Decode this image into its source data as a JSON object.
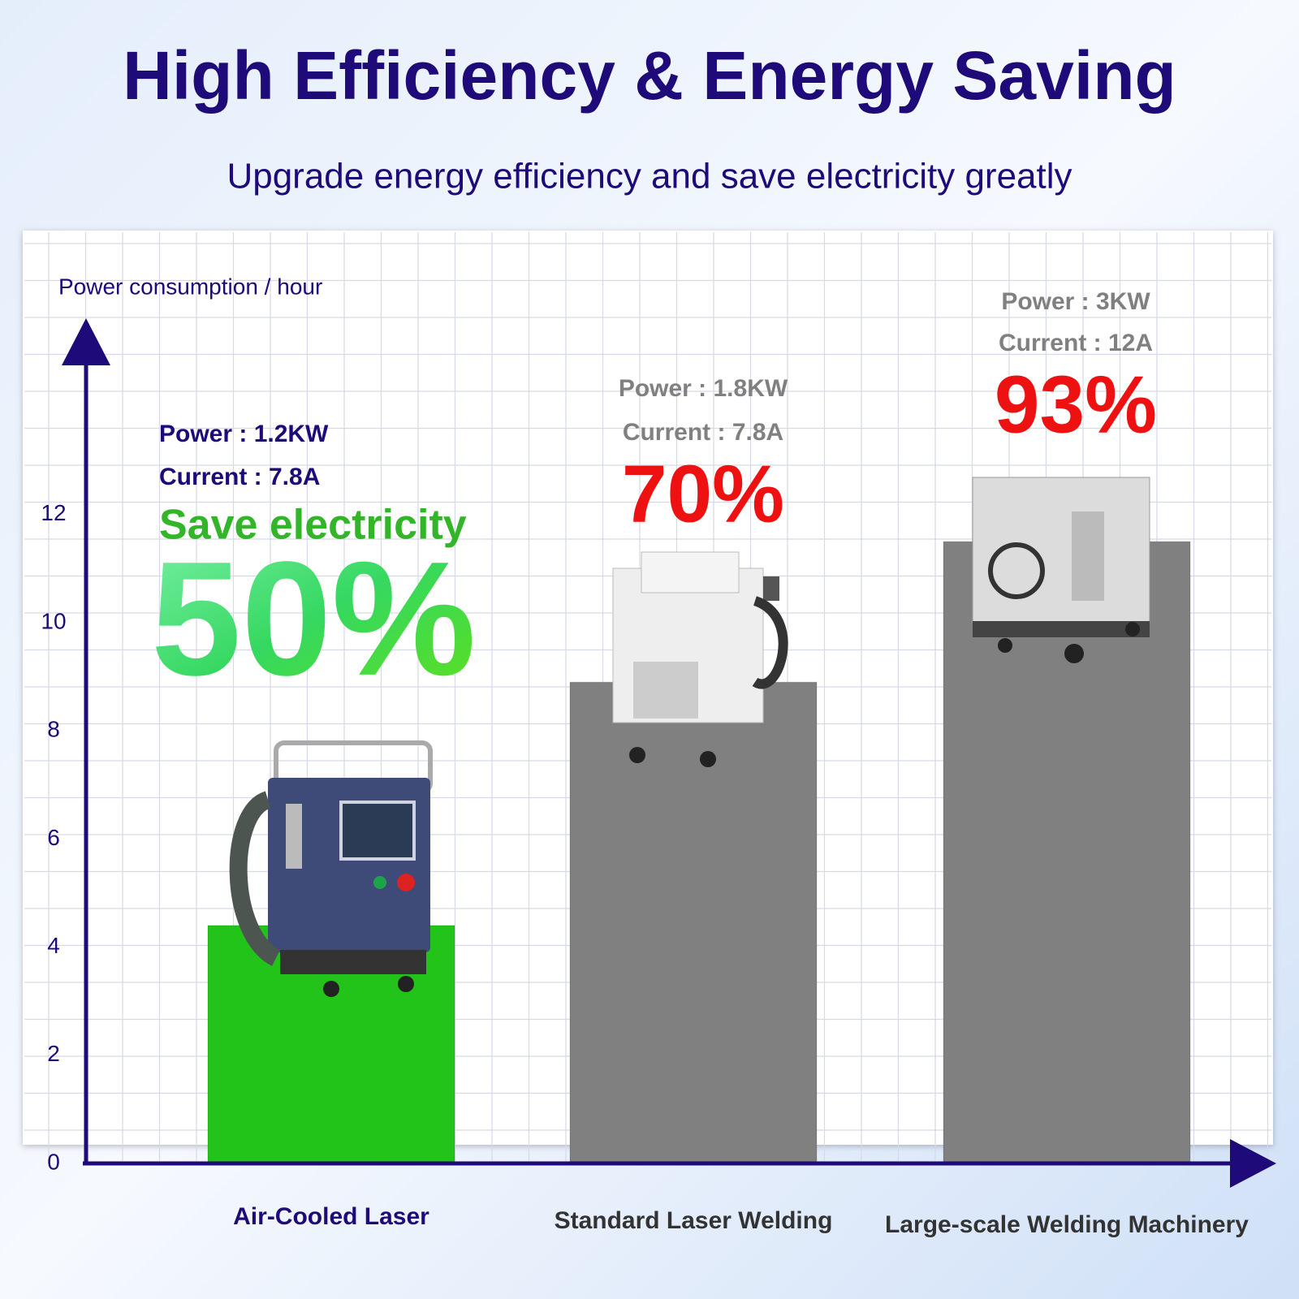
{
  "chart_data": {
    "type": "bar",
    "title": "High Efficiency & Energy Saving",
    "subtitle": "Upgrade energy efficiency and save electricity greatly",
    "y_label": "Power consumption / hour",
    "categories": [
      "Air-Cooled Laser",
      "Standard Laser Welding",
      "Large-scale Welding Machinery"
    ],
    "values": [
      4.4,
      8.9,
      11.5
    ],
    "colors": [
      "#22c41a",
      "#808080",
      "#808080"
    ],
    "ylim": [
      0,
      15
    ],
    "yticks": [
      0,
      2,
      4,
      6,
      8,
      10,
      12
    ],
    "grid": true,
    "annotations": [
      {
        "power": "Power : 1.2KW",
        "current": "Current : 7.8A",
        "note": "Save electricity",
        "percent": "50%"
      },
      {
        "power": "Power : 1.8KW",
        "current": "Current : 7.8A",
        "percent": "70%"
      },
      {
        "power": "Power : 3KW",
        "current": "Current : 12A",
        "percent": "93%"
      }
    ]
  }
}
